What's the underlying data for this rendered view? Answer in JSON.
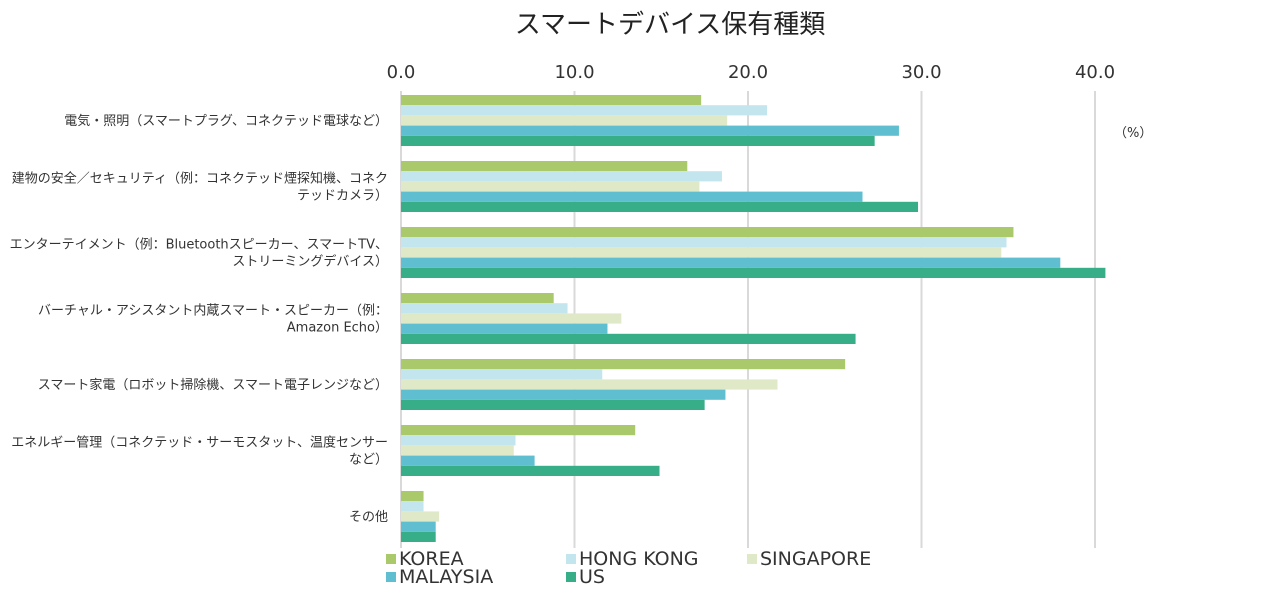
{
  "chart_data": {
    "type": "bar",
    "orientation": "horizontal",
    "title": "スマートデバイス保有種類",
    "unit_label": "（%）",
    "xlim": [
      0,
      50
    ],
    "x_ticks": [
      "0.0",
      "10.0",
      "20.0",
      "30.0",
      "40.0"
    ],
    "x_tick_values": [
      0,
      10,
      20,
      30,
      40
    ],
    "grid": true,
    "legend_position": "bottom",
    "categories": [
      [
        "電気・照明（スマートプラグ、コネクテッド電球など）"
      ],
      [
        "建物の安全／セキュリティ（例：コネクテッド煙探知機、コネク",
        "テッドカメラ）"
      ],
      [
        "エンターテイメント（例：Bluetoothスピーカー、スマートTV、",
        "ストリーミングデバイス）"
      ],
      [
        "バーチャル・アシスタント内蔵スマート・スピーカー（例：",
        "Amazon Echo）"
      ],
      [
        "スマート家電（ロボット掃除機、スマート電子レンジなど）"
      ],
      [
        "エネルギー管理（コネクテッド・サーモスタット、温度センサー",
        "など）"
      ],
      [
        "その他"
      ]
    ],
    "series": [
      {
        "name": "KOREA",
        "color": "#a9c96a",
        "values": [
          17.3,
          16.5,
          35.3,
          8.8,
          25.6,
          13.5,
          1.3
        ]
      },
      {
        "name": "HONG KONG",
        "color": "#c3e6ee",
        "values": [
          21.1,
          18.5,
          34.9,
          9.6,
          11.6,
          6.6,
          1.3
        ]
      },
      {
        "name": "SINGAPORE",
        "color": "#dfe9c7",
        "values": [
          18.8,
          17.2,
          34.6,
          12.7,
          21.7,
          6.5,
          2.2
        ]
      },
      {
        "name": "MALAYSIA",
        "color": "#5fbfd0",
        "values": [
          28.7,
          26.6,
          38.0,
          11.9,
          18.7,
          7.7,
          2.0
        ]
      },
      {
        "name": "US",
        "color": "#37ae88",
        "values": [
          27.3,
          29.8,
          40.6,
          26.2,
          17.5,
          14.9,
          2.0
        ]
      }
    ]
  }
}
